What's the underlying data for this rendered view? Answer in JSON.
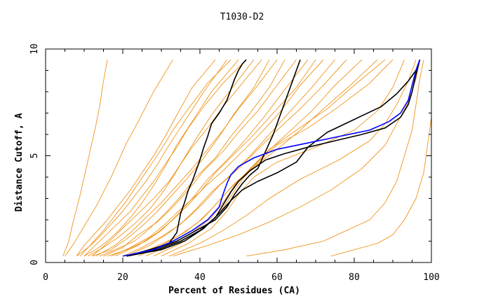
{
  "chart_data": {
    "type": "line",
    "title": "T1030-D2",
    "xlabel": "Percent of Residues (CA)",
    "ylabel": "Distance Cutoff, A",
    "xlim": [
      0,
      100
    ],
    "ylim": [
      0,
      10
    ],
    "x_ticks": [
      0,
      20,
      40,
      60,
      80,
      100
    ],
    "y_ticks": [
      0,
      5,
      10
    ],
    "grid": false,
    "legend": "none",
    "colors": {
      "orange": "#ee8800",
      "black": "#000000",
      "blue": "#0000ff"
    },
    "series": [
      {
        "color": "#ee8800",
        "x": [
          4.5,
          6,
          7,
          8,
          9,
          10,
          11,
          12,
          13,
          14,
          15,
          16
        ],
        "y": [
          0.3,
          1.0,
          1.8,
          2.5,
          3.2,
          4.0,
          4.8,
          5.6,
          6.4,
          7.3,
          8.5,
          9.5
        ]
      },
      {
        "color": "#ee8800",
        "x": [
          5,
          7,
          9,
          11,
          13,
          15,
          17,
          19,
          21,
          24,
          28,
          33
        ],
        "y": [
          0.3,
          0.8,
          1.4,
          2.0,
          2.6,
          3.3,
          4.0,
          4.8,
          5.6,
          6.6,
          8.0,
          9.5
        ]
      },
      {
        "color": "#ee8800",
        "x": [
          8,
          10,
          13,
          16,
          19,
          22,
          25,
          28,
          31,
          34,
          38,
          44
        ],
        "y": [
          0.3,
          0.8,
          1.4,
          2.0,
          2.7,
          3.4,
          4.2,
          5.0,
          5.9,
          6.9,
          8.2,
          9.5
        ]
      },
      {
        "color": "#ee8800",
        "x": [
          8,
          11,
          14,
          17,
          20,
          23,
          26,
          29,
          32,
          36,
          41,
          47
        ],
        "y": [
          0.3,
          0.7,
          1.2,
          1.8,
          2.4,
          3.1,
          3.8,
          4.6,
          5.5,
          6.6,
          8.0,
          9.5
        ]
      },
      {
        "color": "#ee8800",
        "x": [
          9,
          12,
          15,
          18,
          21,
          24,
          27,
          30,
          33,
          37,
          42,
          48
        ],
        "y": [
          0.3,
          0.9,
          1.5,
          2.2,
          2.9,
          3.7,
          4.5,
          5.3,
          6.2,
          7.2,
          8.4,
          9.5
        ]
      },
      {
        "color": "#ee8800",
        "x": [
          10,
          13,
          16,
          19,
          22,
          25,
          28,
          31,
          34,
          38,
          43,
          50
        ],
        "y": [
          0.3,
          0.6,
          1.0,
          1.5,
          2.1,
          2.8,
          3.6,
          4.5,
          5.5,
          6.6,
          8.0,
          9.5
        ]
      },
      {
        "color": "#ee8800",
        "x": [
          10,
          14,
          18,
          22,
          25,
          28,
          31,
          34,
          37,
          41,
          46,
          52
        ],
        "y": [
          0.3,
          1.0,
          1.7,
          2.4,
          3.1,
          3.8,
          4.6,
          5.4,
          6.3,
          7.3,
          8.4,
          9.5
        ]
      },
      {
        "color": "#ee8800",
        "x": [
          11,
          15,
          19,
          23,
          27,
          30,
          33,
          36,
          39,
          43,
          48,
          54
        ],
        "y": [
          0.3,
          0.7,
          1.2,
          1.8,
          2.5,
          3.2,
          4.0,
          4.9,
          5.8,
          6.9,
          8.1,
          9.5
        ]
      },
      {
        "color": "#ee8800",
        "x": [
          12,
          16,
          20,
          24,
          28,
          32,
          35,
          38,
          42,
          46,
          51,
          56
        ],
        "y": [
          0.3,
          0.9,
          1.6,
          2.3,
          3.0,
          3.8,
          4.6,
          5.4,
          6.3,
          7.3,
          8.4,
          9.5
        ]
      },
      {
        "color": "#ee8800",
        "x": [
          12,
          17,
          21,
          25,
          29,
          33,
          37,
          41,
          45,
          49,
          54,
          58
        ],
        "y": [
          0.3,
          0.6,
          1.1,
          1.7,
          2.4,
          3.2,
          4.0,
          4.9,
          5.9,
          7.0,
          8.2,
          9.5
        ]
      },
      {
        "color": "#ee8800",
        "x": [
          13,
          18,
          22,
          26,
          30,
          34,
          38,
          42,
          46,
          50,
          55,
          60
        ],
        "y": [
          0.3,
          0.8,
          1.4,
          2.1,
          2.8,
          3.6,
          4.4,
          5.3,
          6.2,
          7.2,
          8.3,
          9.5
        ]
      },
      {
        "color": "#ee8800",
        "x": [
          14,
          18,
          23,
          27,
          31,
          35,
          39,
          44,
          48,
          53,
          58,
          62
        ],
        "y": [
          0.3,
          0.6,
          1.0,
          1.6,
          2.3,
          3.1,
          4.0,
          4.9,
          5.9,
          7.0,
          8.2,
          9.5
        ]
      },
      {
        "color": "#ee8800",
        "x": [
          15,
          20,
          24,
          29,
          33,
          37,
          41,
          46,
          50,
          55,
          60,
          65
        ],
        "y": [
          0.3,
          0.7,
          1.3,
          1.9,
          2.6,
          3.4,
          4.3,
          5.2,
          6.1,
          7.1,
          8.3,
          9.5
        ]
      },
      {
        "color": "#ee8800",
        "x": [
          16,
          21,
          26,
          30,
          34,
          38,
          42,
          47,
          52,
          57,
          62,
          68
        ],
        "y": [
          0.3,
          0.6,
          1.0,
          1.5,
          2.2,
          3.0,
          3.9,
          4.8,
          5.8,
          6.9,
          8.1,
          9.5
        ]
      },
      {
        "color": "#ee8800",
        "x": [
          17,
          22,
          27,
          31,
          35,
          40,
          44,
          49,
          54,
          59,
          65,
          70
        ],
        "y": [
          0.3,
          0.7,
          1.2,
          1.8,
          2.5,
          3.3,
          4.2,
          5.1,
          6.0,
          7.0,
          8.2,
          9.5
        ]
      },
      {
        "color": "#ee8800",
        "x": [
          18,
          24,
          29,
          33,
          37,
          41,
          46,
          51,
          56,
          61,
          66,
          72
        ],
        "y": [
          0.3,
          0.8,
          1.4,
          2.0,
          2.7,
          3.5,
          4.3,
          5.2,
          6.1,
          7.1,
          8.3,
          9.5
        ]
      },
      {
        "color": "#ee8800",
        "x": [
          20,
          25,
          30,
          35,
          39,
          43,
          48,
          53,
          58,
          63,
          69,
          75
        ],
        "y": [
          0.3,
          0.7,
          1.2,
          1.8,
          2.5,
          3.3,
          4.1,
          5.0,
          6.0,
          7.0,
          8.2,
          9.5
        ]
      },
      {
        "color": "#ee8800",
        "x": [
          21,
          27,
          32,
          37,
          41,
          45,
          50,
          55,
          60,
          66,
          72,
          78
        ],
        "y": [
          0.3,
          0.8,
          1.4,
          2.1,
          2.8,
          3.6,
          4.4,
          5.3,
          6.2,
          7.2,
          8.3,
          9.5
        ]
      },
      {
        "color": "#ee8800",
        "x": [
          22,
          28,
          34,
          39,
          43,
          47,
          52,
          57,
          63,
          69,
          75,
          82
        ],
        "y": [
          0.3,
          0.7,
          1.2,
          1.8,
          2.5,
          3.3,
          4.2,
          5.1,
          6.1,
          7.1,
          8.3,
          9.5
        ]
      },
      {
        "color": "#ee8800",
        "x": [
          24,
          30,
          36,
          41,
          45,
          49,
          54,
          60,
          66,
          72,
          79,
          86
        ],
        "y": [
          0.3,
          0.8,
          1.4,
          2.1,
          2.9,
          3.7,
          4.5,
          5.3,
          6.2,
          7.2,
          8.3,
          9.5
        ]
      },
      {
        "color": "#ee8800",
        "x": [
          26,
          32,
          38,
          43,
          46,
          49,
          53,
          58,
          65,
          73,
          80,
          88
        ],
        "y": [
          0.3,
          0.8,
          1.4,
          2.1,
          2.8,
          3.6,
          4.4,
          5.3,
          6.2,
          7.2,
          8.3,
          9.5
        ]
      },
      {
        "color": "#ee8800",
        "x": [
          28,
          35,
          41,
          45,
          48,
          51,
          55,
          60,
          68,
          76,
          84,
          90
        ],
        "y": [
          0.3,
          0.9,
          1.6,
          2.3,
          3.1,
          3.9,
          4.7,
          5.5,
          6.3,
          7.3,
          8.4,
          9.5
        ]
      },
      {
        "color": "#ee8800",
        "x": [
          30,
          37,
          43,
          47,
          50,
          54,
          60,
          70,
          80,
          86,
          90,
          93
        ],
        "y": [
          0.3,
          0.9,
          1.6,
          2.4,
          3.2,
          4.0,
          4.7,
          5.4,
          6.2,
          7.1,
          8.2,
          9.5
        ]
      },
      {
        "color": "#ee8800",
        "x": [
          32,
          40,
          46,
          52,
          58,
          66,
          76,
          84,
          88,
          91,
          94,
          96
        ],
        "y": [
          0.3,
          0.9,
          1.5,
          2.2,
          3.0,
          3.9,
          4.8,
          5.7,
          6.5,
          7.4,
          8.5,
          9.5
        ]
      },
      {
        "color": "#ee8800",
        "x": [
          33,
          42,
          50,
          58,
          66,
          74,
          82,
          88,
          91,
          94,
          96,
          97
        ],
        "y": [
          0.3,
          0.8,
          1.3,
          1.9,
          2.6,
          3.4,
          4.4,
          5.5,
          6.5,
          7.5,
          8.6,
          9.5
        ]
      },
      {
        "color": "#ee8800",
        "x": [
          52,
          62,
          72,
          78,
          84,
          88,
          91,
          93,
          95,
          96,
          97,
          98
        ],
        "y": [
          0.3,
          0.6,
          1.0,
          1.5,
          2.0,
          2.8,
          3.8,
          5.0,
          6.2,
          7.4,
          8.6,
          9.5
        ]
      },
      {
        "color": "#ee8800",
        "x": [
          74,
          80,
          86,
          90,
          93,
          96,
          98,
          99,
          100,
          100,
          100
        ],
        "y": [
          0.3,
          0.6,
          0.9,
          1.3,
          2.0,
          3.0,
          4.2,
          5.5,
          6.8,
          8.2,
          9.5
        ]
      },
      {
        "color": "#000000",
        "x": [
          21,
          27,
          32,
          34,
          35,
          36,
          37,
          38,
          39,
          40,
          41,
          42,
          43,
          45,
          47,
          48,
          49,
          50,
          51,
          52
        ],
        "y": [
          0.3,
          0.6,
          0.9,
          1.4,
          2.3,
          2.8,
          3.4,
          3.8,
          4.3,
          4.8,
          5.4,
          5.9,
          6.5,
          7.0,
          7.6,
          8.1,
          8.6,
          9.0,
          9.3,
          9.5
        ]
      },
      {
        "color": "#000000",
        "x": [
          21,
          28,
          34,
          39,
          44,
          47,
          49,
          51,
          53,
          55,
          56,
          57,
          58,
          59,
          60,
          61,
          62,
          63,
          64,
          65,
          66
        ],
        "y": [
          0.3,
          0.6,
          1.0,
          1.5,
          2.0,
          2.6,
          3.2,
          3.7,
          4.1,
          4.4,
          4.8,
          5.2,
          5.6,
          6.0,
          6.5,
          7.0,
          7.5,
          8.0,
          8.5,
          9.0,
          9.5
        ]
      },
      {
        "color": "#000000",
        "x": [
          21,
          29,
          35,
          40,
          44,
          46,
          48,
          50,
          53,
          57,
          62,
          68,
          75,
          82,
          88,
          92,
          94,
          95,
          96,
          97
        ],
        "y": [
          0.3,
          0.6,
          1.0,
          1.5,
          2.1,
          2.7,
          3.3,
          3.8,
          4.3,
          4.8,
          5.1,
          5.4,
          5.7,
          6.0,
          6.3,
          6.8,
          7.4,
          8.0,
          8.8,
          9.5
        ]
      },
      {
        "color": "#000000",
        "x": [
          21,
          30,
          36,
          41,
          45,
          48,
          51,
          55,
          60,
          65,
          68,
          73,
          80,
          87,
          91,
          94,
          96,
          97
        ],
        "y": [
          0.3,
          0.6,
          1.0,
          1.6,
          2.3,
          2.9,
          3.4,
          3.8,
          4.2,
          4.7,
          5.4,
          6.1,
          6.7,
          7.3,
          7.9,
          8.5,
          9.0,
          9.5
        ]
      },
      {
        "color": "#0000ff",
        "x": [
          20,
          28,
          33,
          38,
          42,
          45,
          46,
          47,
          48,
          50,
          54,
          60,
          68,
          76,
          84,
          89,
          92,
          94,
          95,
          96,
          97
        ],
        "y": [
          0.3,
          0.6,
          1.0,
          1.5,
          2.0,
          2.6,
          3.2,
          3.7,
          4.1,
          4.5,
          4.9,
          5.3,
          5.6,
          5.9,
          6.2,
          6.6,
          7.0,
          7.6,
          8.3,
          9.0,
          9.5
        ]
      }
    ]
  }
}
